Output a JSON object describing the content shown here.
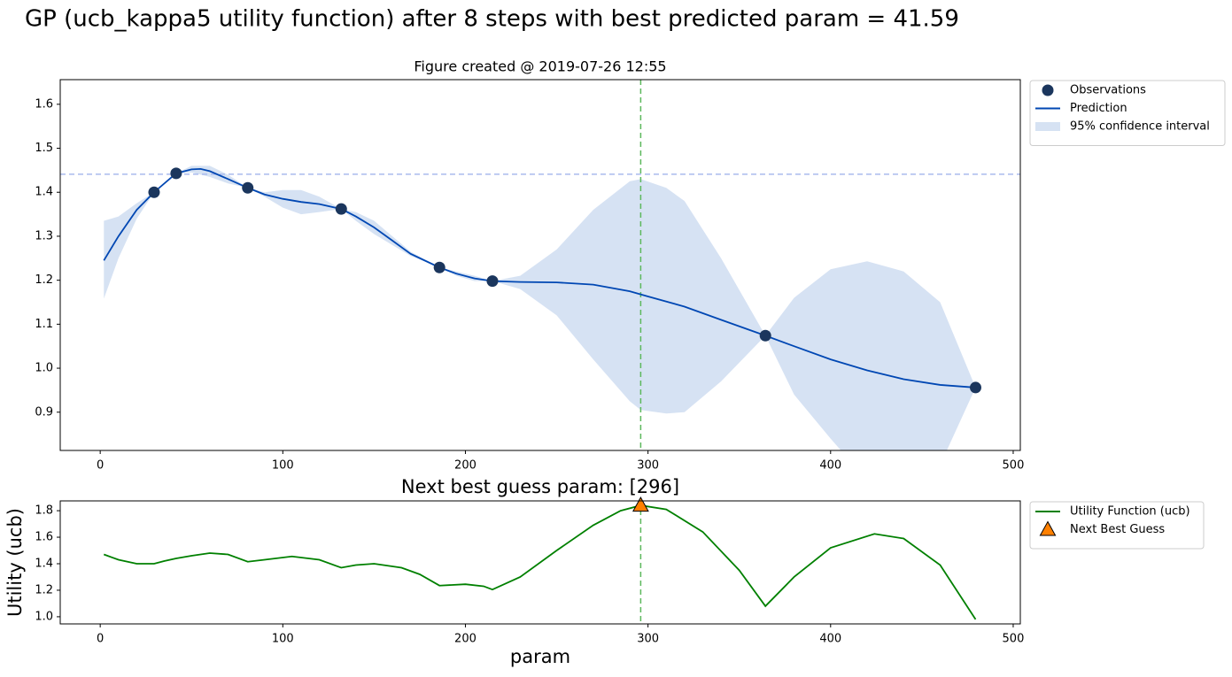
{
  "figure_title": "GP (ucb_kappa5 utility function) after 8 steps with best predicted param = 41.59",
  "chart_data": [
    {
      "type": "line",
      "title": "Figure created @ 2019-07-26 12:55",
      "xlim": [
        -21.9,
        503.9
      ],
      "ylim": [
        0.813,
        1.656
      ],
      "xticks": [
        0,
        100,
        200,
        300,
        400,
        500
      ],
      "yticks": [
        0.9,
        {
          "value": 1,
          "label": "1.0"
        },
        1.1,
        1.2,
        1.3,
        1.4,
        1.5,
        1.6
      ],
      "hline": {
        "y": 1.441,
        "color": "#aabbee"
      },
      "vline": {
        "x": 296,
        "color": "#5cb85c"
      },
      "legend": "outside upper right",
      "series": [
        {
          "name": "Observations",
          "style": "markers",
          "color": "#1b365d",
          "x": [
            29.5,
            41.59,
            80.8,
            132,
            185.8,
            214.8,
            364.3,
            479.4
          ],
          "values": [
            1.4,
            1.443,
            1.41,
            1.362,
            1.229,
            1.198,
            1.074,
            0.956
          ]
        },
        {
          "name": "Prediction",
          "style": "line",
          "color": "#0047b3",
          "x": [
            2,
            10,
            20,
            29.5,
            41.59,
            50,
            55,
            60,
            70,
            80.8,
            90,
            100,
            110,
            120,
            132,
            140,
            150,
            160,
            170,
            185.8,
            195,
            205,
            214.8,
            230,
            250,
            270,
            290,
            300,
            320,
            340,
            364.3,
            380,
            400,
            420,
            440,
            460,
            479.4
          ],
          "values": [
            1.245,
            1.3,
            1.36,
            1.4,
            1.443,
            1.452,
            1.453,
            1.448,
            1.43,
            1.41,
            1.395,
            1.385,
            1.378,
            1.373,
            1.362,
            1.345,
            1.32,
            1.29,
            1.26,
            1.229,
            1.215,
            1.204,
            1.198,
            1.196,
            1.195,
            1.19,
            1.175,
            1.163,
            1.14,
            1.11,
            1.074,
            1.05,
            1.02,
            0.995,
            0.975,
            0.962,
            0.956
          ]
        },
        {
          "name": "95% confidence interval",
          "style": "band",
          "color": "#d6e2f3",
          "x": [
            2,
            10,
            20,
            29.5,
            41.59,
            50,
            60,
            70,
            80.8,
            90,
            100,
            110,
            120,
            132,
            140,
            150,
            160,
            170,
            185.8,
            195,
            205,
            214.8,
            230,
            250,
            270,
            290,
            296,
            310,
            320,
            340,
            364.3,
            380,
            400,
            420,
            440,
            460,
            479.4
          ],
          "values": [
            1.335,
            1.345,
            1.375,
            1.4,
            1.443,
            1.46,
            1.46,
            1.44,
            1.41,
            1.4,
            1.405,
            1.405,
            1.39,
            1.362,
            1.355,
            1.335,
            1.3,
            1.265,
            1.229,
            1.22,
            1.21,
            1.198,
            1.21,
            1.27,
            1.36,
            1.425,
            1.43,
            1.41,
            1.38,
            1.25,
            1.074,
            1.16,
            1.225,
            1.243,
            1.22,
            1.15,
            0.956
          ],
          "lower": [
            1.158,
            1.25,
            1.34,
            1.4,
            1.443,
            1.445,
            1.435,
            1.42,
            1.41,
            1.39,
            1.365,
            1.35,
            1.355,
            1.362,
            1.335,
            1.305,
            1.28,
            1.255,
            1.229,
            1.21,
            1.198,
            1.198,
            1.18,
            1.12,
            1.02,
            0.925,
            0.905,
            0.897,
            0.9,
            0.97,
            1.074,
            0.94,
            0.84,
            0.745,
            0.73,
            0.78,
            0.956
          ]
        }
      ]
    },
    {
      "type": "line",
      "title": "Next best guess param: [296]",
      "x_label": "param",
      "y_label": "Utility (ucb)",
      "xlim": [
        -21.9,
        503.9
      ],
      "ylim": [
        0.946,
        1.874
      ],
      "xticks": [
        0,
        100,
        200,
        300,
        400,
        500
      ],
      "yticks": [
        {
          "value": 1,
          "label": "1.0"
        },
        1.2,
        1.4,
        1.6,
        1.8
      ],
      "vline": {
        "x": 296,
        "color": "#5cb85c"
      },
      "legend": "outside upper right",
      "series": [
        {
          "name": "Utility Function (ucb)",
          "style": "line",
          "color": "#008000",
          "x": [
            2,
            10,
            20,
            29.5,
            35,
            41.59,
            50,
            60,
            70,
            80.8,
            90,
            105,
            120,
            132,
            140,
            150,
            165,
            175,
            185.8,
            200,
            210,
            214.8,
            230,
            250,
            270,
            285,
            296,
            310,
            330,
            350,
            364.3,
            380,
            400,
            424,
            440,
            460,
            479.4
          ],
          "values": [
            1.47,
            1.43,
            1.4,
            1.4,
            1.42,
            1.44,
            1.46,
            1.48,
            1.47,
            1.415,
            1.43,
            1.455,
            1.43,
            1.37,
            1.39,
            1.4,
            1.37,
            1.32,
            1.235,
            1.245,
            1.23,
            1.205,
            1.3,
            1.5,
            1.69,
            1.8,
            1.84,
            1.81,
            1.64,
            1.35,
            1.08,
            1.3,
            1.52,
            1.625,
            1.59,
            1.39,
            0.98
          ]
        },
        {
          "name": "Next Best Guess",
          "style": "markers",
          "marker": "triangle",
          "color": "#ff8000",
          "x": [
            296
          ],
          "values": [
            1.84
          ]
        }
      ]
    }
  ]
}
